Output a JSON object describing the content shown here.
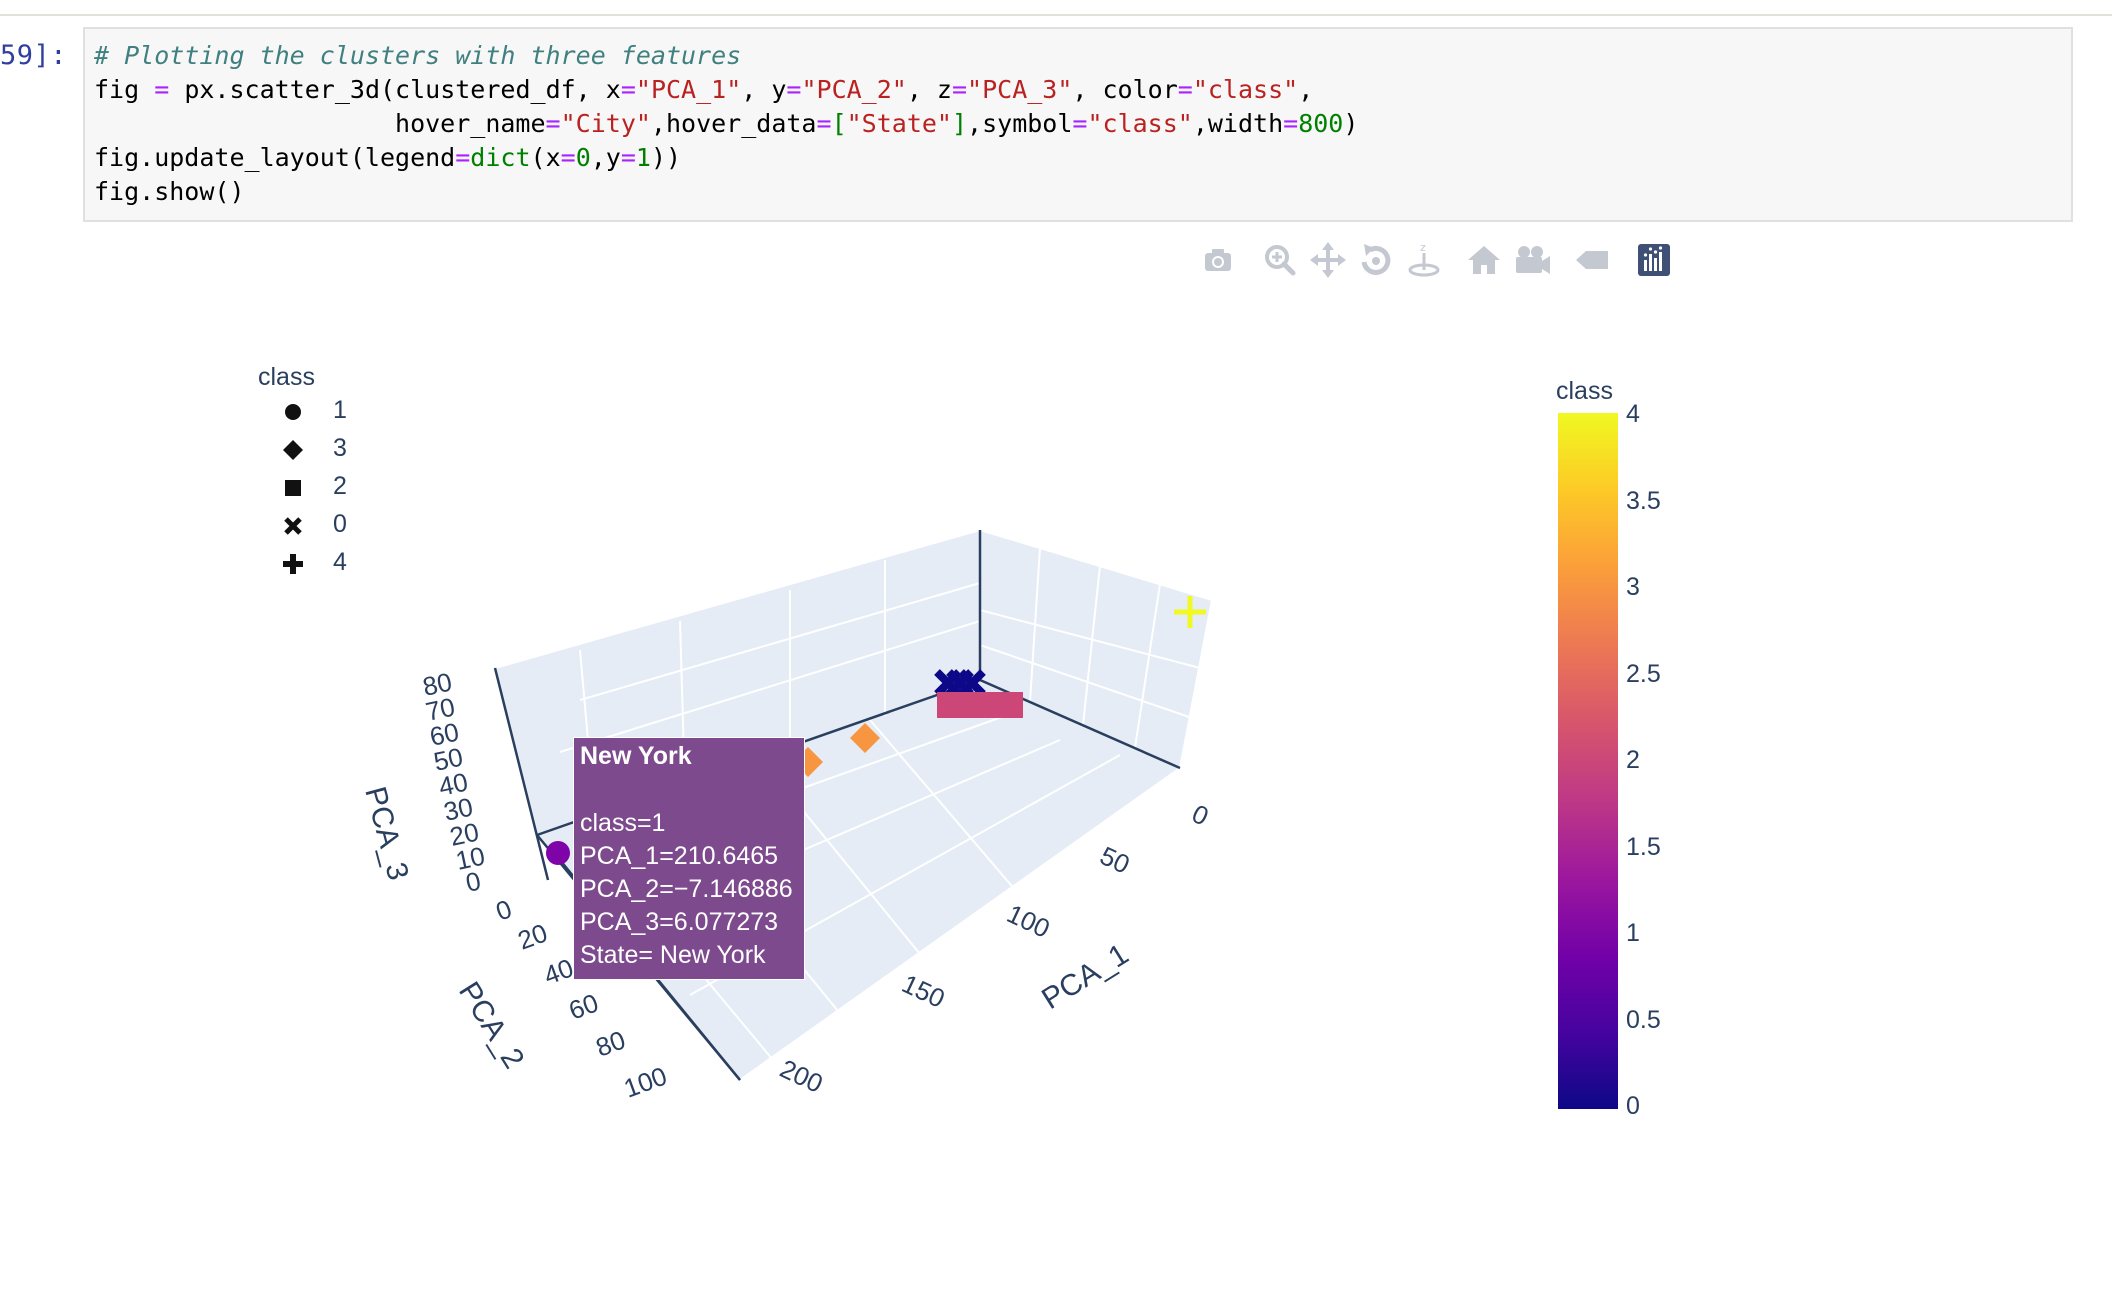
{
  "cell": {
    "prompt": "59]:",
    "code": {
      "comment": "# Plotting the clusters with three features",
      "line2": [
        {
          "t": "fig ",
          "c": ""
        },
        {
          "t": "=",
          "c": "op"
        },
        {
          "t": " px.scatter_3d(clustered_df, x",
          "c": ""
        },
        {
          "t": "=",
          "c": "op"
        },
        {
          "t": "\"PCA_1\"",
          "c": "str"
        },
        {
          "t": ", y",
          "c": ""
        },
        {
          "t": "=",
          "c": "op"
        },
        {
          "t": "\"PCA_2\"",
          "c": "str"
        },
        {
          "t": ", z",
          "c": ""
        },
        {
          "t": "=",
          "c": "op"
        },
        {
          "t": "\"PCA_3\"",
          "c": "str"
        },
        {
          "t": ", color",
          "c": ""
        },
        {
          "t": "=",
          "c": "op"
        },
        {
          "t": "\"class\"",
          "c": "str"
        },
        {
          "t": ",",
          "c": ""
        }
      ],
      "line3": [
        {
          "t": "                    hover_name",
          "c": ""
        },
        {
          "t": "=",
          "c": "op"
        },
        {
          "t": "\"City\"",
          "c": "str"
        },
        {
          "t": ",hover_data",
          "c": ""
        },
        {
          "t": "=",
          "c": "op"
        },
        {
          "t": "[",
          "c": "brk"
        },
        {
          "t": "\"State\"",
          "c": "str"
        },
        {
          "t": "]",
          "c": "brk"
        },
        {
          "t": ",symbol",
          "c": ""
        },
        {
          "t": "=",
          "c": "op"
        },
        {
          "t": "\"class\"",
          "c": "str"
        },
        {
          "t": ",width",
          "c": ""
        },
        {
          "t": "=",
          "c": "op"
        },
        {
          "t": "800",
          "c": "num"
        },
        {
          "t": ")",
          "c": ""
        }
      ],
      "line4": [
        {
          "t": "fig.update_layout(legend",
          "c": ""
        },
        {
          "t": "=",
          "c": "op"
        },
        {
          "t": "dict",
          "c": "fn"
        },
        {
          "t": "(x",
          "c": ""
        },
        {
          "t": "=",
          "c": "op"
        },
        {
          "t": "0",
          "c": "num"
        },
        {
          "t": ",y",
          "c": ""
        },
        {
          "t": "=",
          "c": "op"
        },
        {
          "t": "1",
          "c": "num"
        },
        {
          "t": "))",
          "c": ""
        }
      ],
      "line5": [
        {
          "t": "fig.show()",
          "c": ""
        }
      ]
    }
  },
  "modebar": [
    {
      "icon": "camera-icon",
      "tip": "Download plot as a png"
    },
    {
      "icon": "zoom-icon",
      "tip": "Zoom"
    },
    {
      "icon": "pan-icon",
      "tip": "Pan"
    },
    {
      "icon": "orbit-rotation-icon",
      "tip": "Orbital rotation"
    },
    {
      "icon": "turntable-rotation-icon",
      "tip": "Turntable rotation"
    },
    {
      "icon": "home-icon",
      "tip": "Reset camera"
    },
    {
      "icon": "camera-view-icon",
      "tip": "Reset camera to last save"
    },
    {
      "icon": "hover-toggle-icon",
      "tip": "Toggle show closest data on hover"
    },
    {
      "icon": "plotly-logo-icon",
      "tip": "Produced with Plotly"
    }
  ],
  "legend": {
    "title": "class",
    "items": [
      {
        "label": "1",
        "symbol": "circle"
      },
      {
        "label": "3",
        "symbol": "diamond"
      },
      {
        "label": "2",
        "symbol": "square"
      },
      {
        "label": "0",
        "symbol": "x"
      },
      {
        "label": "4",
        "symbol": "cross"
      }
    ]
  },
  "colorbar": {
    "title": "class",
    "ticks": [
      "4",
      "3.5",
      "3",
      "2.5",
      "2",
      "1.5",
      "1",
      "0.5",
      "0"
    ]
  },
  "tooltip": {
    "title": "New York",
    "lines": [
      "class=1",
      "PCA_1=210.6465",
      "PCA_2=−7.146886",
      "PCA_3=6.077273",
      "State= New York"
    ],
    "color": "#7d4a8d"
  },
  "chart_data": {
    "type": "scatter",
    "x_axis": {
      "label": "PCA_1",
      "ticks": [
        "0",
        "50",
        "100",
        "150",
        "200"
      ]
    },
    "y_axis": {
      "label": "PCA_2",
      "ticks": [
        "0",
        "20",
        "40",
        "60",
        "80",
        "100"
      ]
    },
    "z_axis": {
      "label": "PCA_3",
      "ticks": [
        "0",
        "10",
        "20",
        "30",
        "40",
        "50",
        "60",
        "70",
        "80"
      ]
    },
    "points": [
      {
        "class": 4,
        "symbol": "cross",
        "color": "#f0f921",
        "PCA_1": 0,
        "PCA_2": -5,
        "PCA_3": 25
      },
      {
        "class": 0,
        "symbol": "x",
        "color": "#0d0887",
        "PCA_1": 60,
        "PCA_2": -8,
        "PCA_3": 6
      },
      {
        "class": 0,
        "symbol": "x",
        "color": "#0d0887",
        "PCA_1": 63,
        "PCA_2": -9,
        "PCA_3": 7
      },
      {
        "class": 0,
        "symbol": "x",
        "color": "#0d0887",
        "PCA_1": 66,
        "PCA_2": -7,
        "PCA_3": 6
      },
      {
        "class": 2,
        "symbol": "square",
        "color": "#cc4778",
        "PCA_1": 58,
        "PCA_2": -6,
        "PCA_3": 2
      },
      {
        "class": 2,
        "symbol": "square",
        "color": "#cc4778",
        "PCA_1": 61,
        "PCA_2": -5,
        "PCA_3": 2
      },
      {
        "class": 2,
        "symbol": "square",
        "color": "#cc4778",
        "PCA_1": 64,
        "PCA_2": -6,
        "PCA_3": 3
      },
      {
        "class": 2,
        "symbol": "square",
        "color": "#cc4778",
        "PCA_1": 67,
        "PCA_2": -4,
        "PCA_3": 2
      },
      {
        "class": 2,
        "symbol": "square",
        "color": "#cc4778",
        "PCA_1": 70,
        "PCA_2": -5,
        "PCA_3": 2
      },
      {
        "class": 3,
        "symbol": "diamond",
        "color": "#f89540",
        "PCA_1": 120,
        "PCA_2": -6,
        "PCA_3": 4
      },
      {
        "class": 3,
        "symbol": "diamond",
        "color": "#f89540",
        "PCA_1": 140,
        "PCA_2": -6,
        "PCA_3": 4
      },
      {
        "class": 1,
        "symbol": "circle",
        "color": "#7e03a8",
        "PCA_1": 210.6465,
        "PCA_2": -7.146886,
        "PCA_3": 6.077273
      }
    ]
  }
}
